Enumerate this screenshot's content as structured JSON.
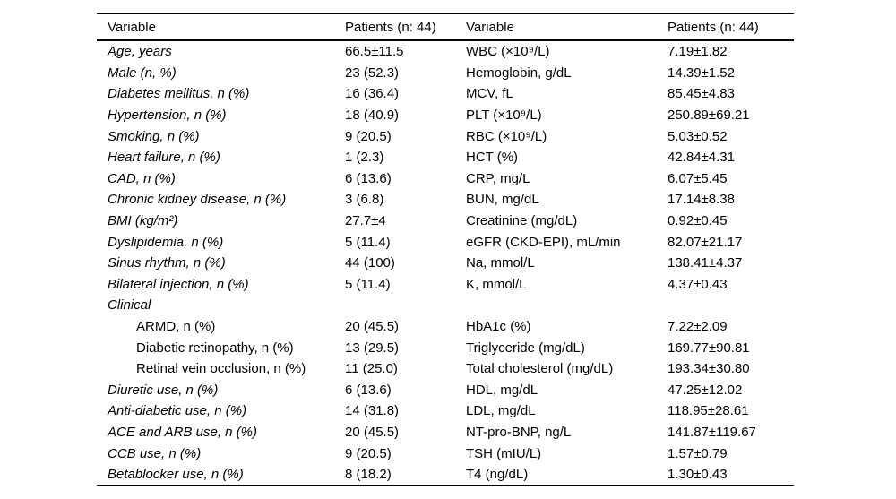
{
  "page": {
    "background_color": "#ffffff",
    "text_color": "#000000"
  },
  "table": {
    "headers": [
      "Variable",
      "Patients (n: 44)",
      "Variable",
      "Patients (n: 44)"
    ],
    "rows": [
      {
        "v1": "Age, years",
        "style1": "italic",
        "p1": "66.5±11.5",
        "v2": "WBC (×10⁹/L)",
        "p2": "7.19±1.82"
      },
      {
        "v1": "Male (n, %)",
        "style1": "italic",
        "p1": "23 (52.3)",
        "v2": "Hemoglobin, g/dL",
        "p2": "14.39±1.52"
      },
      {
        "v1": "Diabetes mellitus, n (%)",
        "style1": "italic",
        "p1": "16 (36.4)",
        "v2": "MCV, fL",
        "p2": "85.45±4.83"
      },
      {
        "v1": "Hypertension, n (%)",
        "style1": "italic",
        "p1": "18 (40.9)",
        "v2": "PLT (×10⁹/L)",
        "p2": "250.89±69.21"
      },
      {
        "v1": "Smoking, n (%)",
        "style1": "italic",
        "p1": "9 (20.5)",
        "v2": "RBC (×10⁹/L)",
        "p2": "5.03±0.52"
      },
      {
        "v1": "Heart failure, n (%)",
        "style1": "italic",
        "p1": "1 (2.3)",
        "v2": "HCT (%)",
        "p2": "42.84±4.31"
      },
      {
        "v1": "CAD, n (%)",
        "style1": "italic",
        "p1": "6 (13.6)",
        "v2": "CRP, mg/L",
        "p2": "6.07±5.45"
      },
      {
        "v1": "Chronic kidney disease, n (%)",
        "style1": "italic",
        "p1": "3 (6.8)",
        "v2": "BUN, mg/dL",
        "p2": "17.14±8.38"
      },
      {
        "v1": "BMI (kg/m²)",
        "style1": "italic",
        "p1": "27.7±4",
        "v2": "Creatinine (mg/dL)",
        "p2": "0.92±0.45"
      },
      {
        "v1": "Dyslipidemia, n (%)",
        "style1": "italic",
        "p1": "5 (11.4)",
        "v2": "eGFR (CKD-EPI), mL/min",
        "p2": "82.07±21.17"
      },
      {
        "v1": "Sinus rhythm, n (%)",
        "style1": "italic",
        "p1": "44 (100)",
        "v2": "Na, mmol/L",
        "p2": "138.41±4.37"
      },
      {
        "v1": "Bilateral injection, n (%)",
        "style1": "italic",
        "p1": "5 (11.4)",
        "v2": "K, mmol/L",
        "p2": "4.37±0.43"
      },
      {
        "v1": "Clinical",
        "style1": "italic",
        "p1": "",
        "v2": "",
        "p2": ""
      },
      {
        "v1": "ARMD, n (%)",
        "style1": "indent",
        "p1": "20 (45.5)",
        "v2": "HbA1c (%)",
        "p2": "7.22±2.09"
      },
      {
        "v1": "Diabetic retinopathy, n (%)",
        "style1": "indent",
        "p1": "13 (29.5)",
        "v2": "Triglyceride (mg/dL)",
        "p2": "169.77±90.81"
      },
      {
        "v1": "Retinal vein occlusion, n (%)",
        "style1": "indent",
        "p1": "11 (25.0)",
        "v2": "Total cholesterol (mg/dL)",
        "p2": "193.34±30.80"
      },
      {
        "v1": "Diuretic use, n (%)",
        "style1": "italic",
        "p1": "6 (13.6)",
        "v2": "HDL, mg/dL",
        "p2": "47.25±12.02"
      },
      {
        "v1": "Anti-diabetic use, n (%)",
        "style1": "italic",
        "p1": "14 (31.8)",
        "v2": "LDL, mg/dL",
        "p2": "118.95±28.61"
      },
      {
        "v1": "ACE and ARB use, n (%)",
        "style1": "italic",
        "p1": "20 (45.5)",
        "v2": "NT-pro-BNP, ng/L",
        "p2": "141.87±119.67"
      },
      {
        "v1": "CCB use, n (%)",
        "style1": "italic",
        "p1": "9 (20.5)",
        "v2": "TSH (mIU/L)",
        "p2": "1.57±0.79"
      },
      {
        "v1": "Betablocker use, n (%)",
        "style1": "italic",
        "p1": "8 (18.2)",
        "v2": "T4 (ng/dL)",
        "p2": "1.30±0.43"
      }
    ]
  }
}
